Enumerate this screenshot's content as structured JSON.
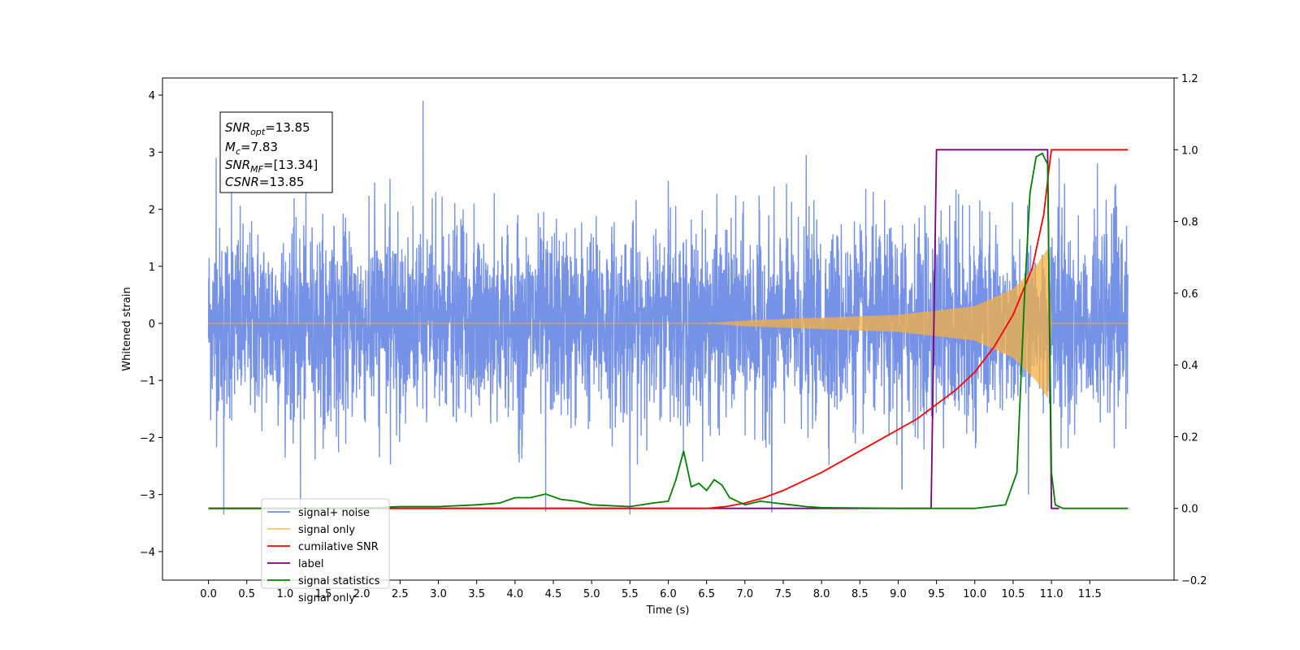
{
  "chart_data": {
    "type": "line",
    "xlabel": "Time (s)",
    "ylabel": "Whitened strain",
    "xlim": [
      -0.6,
      12.6
    ],
    "ylim": [
      -4.5,
      4.3
    ],
    "ylim_right": [
      -0.2,
      1.2
    ],
    "x_ticks": [
      "0.0",
      "0.5",
      "1.0",
      "1.5",
      "2.0",
      "2.5",
      "3.0",
      "3.5",
      "4.0",
      "4.5",
      "5.0",
      "5.5",
      "6.0",
      "6.5",
      "7.0",
      "7.5",
      "8.0",
      "8.5",
      "9.0",
      "9.5",
      "10.0",
      "10.5",
      "11.0",
      "11.5"
    ],
    "y_ticks": [
      "4",
      "3",
      "2",
      "1",
      "0",
      "−1",
      "−2",
      "−3",
      "−4"
    ],
    "y_ticks_right": [
      "1.2",
      "1.0",
      "0.8",
      "0.6",
      "0.4",
      "0.2",
      "0.0",
      "−0.2"
    ],
    "grid": false,
    "legend_placement": "lower-left",
    "annotation": {
      "snr_opt": {
        "symbol": "SNR",
        "sub": "opt",
        "value": "=13.85"
      },
      "mc": {
        "symbol": "M",
        "sub": "c",
        "value": "=7.83"
      },
      "snr_mf": {
        "symbol": "SNR",
        "sub": "MF",
        "value": "=[13.34]"
      },
      "csnr": {
        "symbol": "CSNR",
        "sub": "",
        "value": "=13.85"
      }
    },
    "series": [
      {
        "name": "signal+ noise",
        "color": "#6f8ce6",
        "axis": "left",
        "t_range": [
          0.0,
          12.0
        ],
        "amplitude_typical": 1.1,
        "peaks": [
          [
            0.1,
            2.9
          ],
          [
            0.2,
            -3.35
          ],
          [
            0.3,
            2.6
          ],
          [
            1.2,
            -3.3
          ],
          [
            2.8,
            3.9
          ],
          [
            4.4,
            -3.3
          ],
          [
            5.5,
            -3.35
          ],
          [
            6.0,
            2.5
          ],
          [
            7.35,
            -3.3
          ],
          [
            7.8,
            2.95
          ],
          [
            9.05,
            -2.9
          ],
          [
            10.7,
            -3.0
          ],
          [
            11.1,
            2.9
          ],
          [
            11.6,
            2.8
          ]
        ]
      },
      {
        "name": "signal only",
        "color": "#f5b041",
        "axis": "left",
        "t_range": [
          0.0,
          12.0
        ],
        "envelope": [
          [
            0.0,
            0.0
          ],
          [
            6.5,
            0.0
          ],
          [
            7.0,
            0.05
          ],
          [
            8.0,
            0.1
          ],
          [
            9.0,
            0.15
          ],
          [
            10.0,
            0.3
          ],
          [
            10.5,
            0.6
          ],
          [
            10.8,
            1.0
          ],
          [
            10.95,
            1.3
          ],
          [
            11.0,
            0.0
          ],
          [
            12.0,
            0.0
          ]
        ]
      },
      {
        "name": "cumilative SNR",
        "color": "#ff0000",
        "axis": "right",
        "x": [
          0.0,
          6.5,
          6.75,
          7.0,
          7.25,
          7.5,
          7.75,
          8.0,
          8.25,
          8.5,
          8.75,
          9.0,
          9.25,
          9.5,
          9.75,
          10.0,
          10.25,
          10.5,
          10.75,
          10.9,
          10.97,
          11.0,
          12.0
        ],
        "y": [
          0.0,
          0.0,
          0.005,
          0.015,
          0.03,
          0.05,
          0.075,
          0.1,
          0.13,
          0.16,
          0.19,
          0.22,
          0.25,
          0.29,
          0.33,
          0.38,
          0.45,
          0.54,
          0.67,
          0.82,
          0.95,
          1.0,
          1.0
        ]
      },
      {
        "name": "label",
        "color": "#7b007b",
        "axis": "right",
        "x": [
          0.0,
          9.43,
          9.5,
          10.95,
          11.0,
          11.1
        ],
        "y": [
          0.0,
          0.0,
          1.0,
          1.0,
          0.0,
          0.0
        ]
      },
      {
        "name": "signal statistics",
        "color": "#008000",
        "axis": "right",
        "x": [
          0.0,
          2.0,
          2.5,
          3.0,
          3.5,
          3.8,
          4.0,
          4.2,
          4.4,
          4.6,
          4.8,
          5.0,
          5.5,
          5.8,
          6.0,
          6.1,
          6.2,
          6.3,
          6.4,
          6.5,
          6.6,
          6.7,
          6.8,
          7.0,
          7.2,
          7.4,
          7.6,
          7.8,
          8.0,
          9.0,
          10.0,
          10.4,
          10.55,
          10.65,
          10.72,
          10.8,
          10.88,
          10.95,
          11.0,
          11.05,
          11.15,
          12.0
        ],
        "y": [
          0.0,
          0.0,
          0.005,
          0.005,
          0.01,
          0.015,
          0.03,
          0.03,
          0.04,
          0.025,
          0.02,
          0.01,
          0.005,
          0.015,
          0.02,
          0.08,
          0.16,
          0.06,
          0.07,
          0.05,
          0.08,
          0.065,
          0.03,
          0.01,
          0.02,
          0.015,
          0.01,
          0.005,
          0.002,
          0.0,
          0.0,
          0.01,
          0.1,
          0.6,
          0.88,
          0.98,
          0.99,
          0.96,
          0.1,
          0.01,
          0.0,
          0.0
        ]
      },
      {
        "name": "signal only",
        "color": "#8c8c8c",
        "axis": "right",
        "legend_only": true
      }
    ]
  }
}
